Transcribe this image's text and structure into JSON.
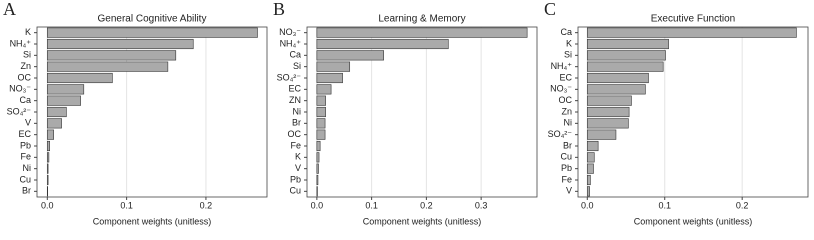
{
  "chart_data": [
    {
      "type": "barh",
      "panel_label": "A",
      "title": "General Cognitive Ability",
      "xlabel": "Component weights (unitless)",
      "categories": [
        "K",
        "NH₄⁺",
        "Si",
        "Zn",
        "OC",
        "NO₃⁻",
        "Ca",
        "SO₄²⁻",
        "V",
        "EC",
        "Pb",
        "Fe",
        "Ni",
        "Cu",
        "Br"
      ],
      "values": [
        0.265,
        0.184,
        0.162,
        0.152,
        0.082,
        0.046,
        0.042,
        0.024,
        0.018,
        0.008,
        0.003,
        0.002,
        0.001,
        0.001,
        0.0005
      ],
      "color": "#aaaaaa",
      "xlim": [
        -0.013,
        0.277
      ],
      "xticks": [
        {
          "value": 0,
          "label": "0.0"
        },
        0.1,
        0.2
      ],
      "grid": true
    },
    {
      "type": "barh",
      "panel_label": "B",
      "title": "Learning & Memory",
      "xlabel": "Component weights (unitless)",
      "categories": [
        "NO₃⁻",
        "NH₄⁺",
        "Ca",
        "Si",
        "SO₄²⁻",
        "EC",
        "ZN",
        "Ni",
        "Br",
        "OC",
        "Fe",
        "K",
        "V",
        "Pb",
        "Cu"
      ],
      "values": [
        0.384,
        0.24,
        0.122,
        0.06,
        0.047,
        0.026,
        0.016,
        0.016,
        0.015,
        0.015,
        0.006,
        0.004,
        0.003,
        0.002,
        0.001
      ],
      "color": "#aaaaaa",
      "xlim": [
        -0.018,
        0.402
      ],
      "xticks": [
        {
          "value": 0,
          "label": "0.0"
        },
        0.1,
        0.2,
        0.3
      ],
      "grid": true
    },
    {
      "type": "barh",
      "panel_label": "C",
      "title": "Executive Function",
      "xlabel": "Component weights (unitless)",
      "categories": [
        "Ca",
        "K",
        "Si",
        "NH₄⁺",
        "EC",
        "NO₃⁻",
        "OC",
        "Zn",
        "Ni",
        "SO₄²⁻",
        "Br",
        "Cu",
        "Pb",
        "Fe",
        "V"
      ],
      "values": [
        0.27,
        0.105,
        0.101,
        0.098,
        0.079,
        0.075,
        0.057,
        0.054,
        0.053,
        0.037,
        0.014,
        0.009,
        0.008,
        0.004,
        0.003
      ],
      "color": "#aaaaaa",
      "xlim": [
        -0.012,
        0.285
      ],
      "xticks": [
        {
          "value": 0,
          "label": "0.0"
        },
        0.1,
        0.2
      ],
      "grid": true
    }
  ]
}
